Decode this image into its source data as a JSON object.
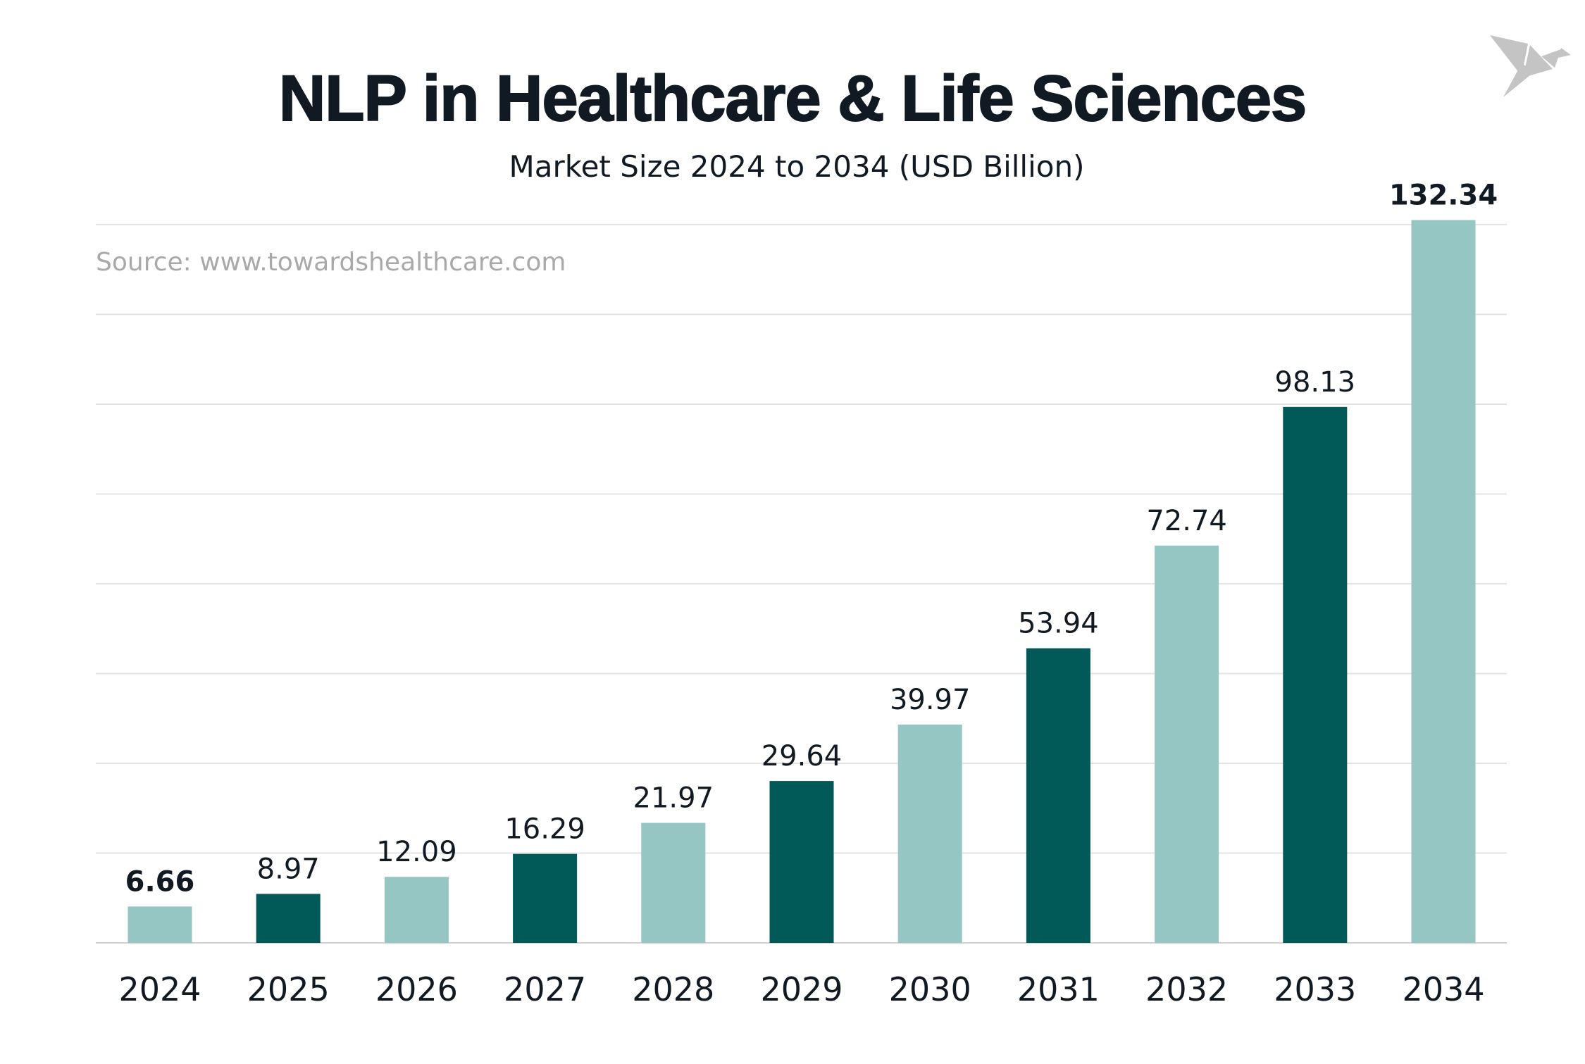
{
  "chart_data": {
    "type": "bar",
    "title": "NLP in Healthcare & Life Sciences",
    "subtitle": "Market Size 2024 to 2034 (USD Billion)",
    "source": "Source: www.towardshealthcare.com",
    "categories": [
      "2024",
      "2025",
      "2026",
      "2027",
      "2028",
      "2029",
      "2030",
      "2031",
      "2032",
      "2033",
      "2034"
    ],
    "values": [
      6.66,
      8.97,
      12.09,
      16.29,
      21.97,
      29.64,
      39.97,
      53.94,
      72.74,
      98.13,
      132.34
    ],
    "value_labels": [
      "6.66",
      "8.97",
      "12.09",
      "16.29",
      "21.97",
      "29.64",
      "39.97",
      "53.94",
      "72.74",
      "98.13",
      "132.34"
    ],
    "bold_labels": [
      "2024",
      "2034"
    ],
    "bar_colors": [
      "#96c6c3",
      "#025a58"
    ],
    "text_color": "#111a22",
    "grid_color": "#e3e3e3",
    "xlabel": "",
    "ylabel": "",
    "ylim": [
      0,
      131.5
    ],
    "grid": true,
    "y_ticks_visible": false,
    "legend": "none"
  },
  "logo": {
    "icon": "origami-bird-icon",
    "color": "#c4c4c4"
  }
}
